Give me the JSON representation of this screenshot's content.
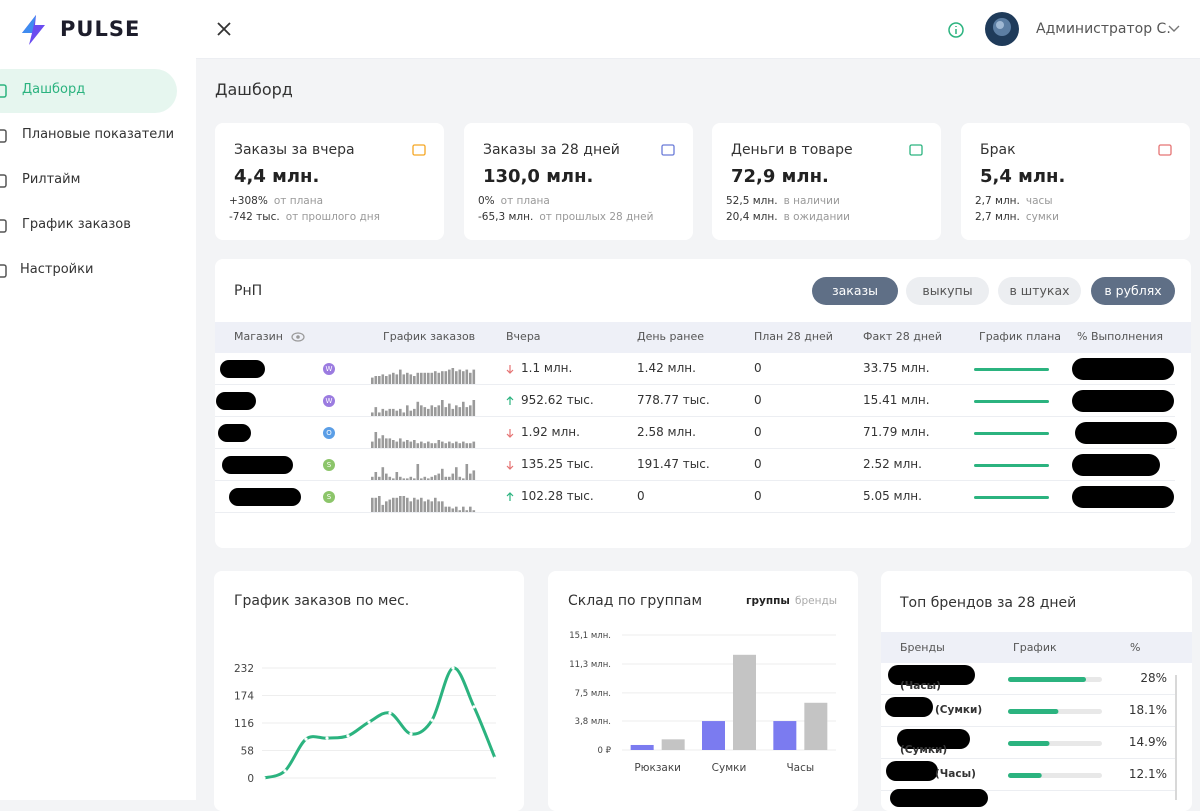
{
  "brand": "PULSE",
  "header": {
    "user": "Администратор С."
  },
  "nav": [
    {
      "label": "Дашборд",
      "active": true
    },
    {
      "label": "Плановые показатели",
      "active": false
    },
    {
      "label": "Рилтайм",
      "active": false
    },
    {
      "label": "График заказов",
      "active": false
    },
    {
      "label": "Настройки",
      "active": false
    }
  ],
  "page_title": "Дашборд",
  "kpis": [
    {
      "title": "Заказы за вчера",
      "value": "4,4 млн.",
      "lines": [
        {
          "value": "+308%",
          "label": "от плана"
        },
        {
          "value": "-742 тыс.",
          "label": "от прошлого дня"
        }
      ]
    },
    {
      "title": "Заказы за 28 дней",
      "value": "130,0 млн.",
      "lines": [
        {
          "value": "0%",
          "label": "от плана"
        },
        {
          "value": "-65,3 млн.",
          "label": "от прошлых 28 дней"
        }
      ]
    },
    {
      "title": "Деньги в товаре",
      "value": "72,9 млн.",
      "lines": [
        {
          "value": "52,5 млн.",
          "label": "в наличии"
        },
        {
          "value": "20,4 млн.",
          "label": "в ожидании"
        }
      ]
    },
    {
      "title": "Брак",
      "value": "5,4 млн.",
      "lines": [
        {
          "value": "2,7 млн.",
          "label": "часы"
        },
        {
          "value": "2,7 млн.",
          "label": "сумки"
        }
      ]
    }
  ],
  "rnp": {
    "title": "РнП",
    "tabs": [
      {
        "label": "заказы",
        "active": true
      },
      {
        "label": "выкупы",
        "active": false
      },
      {
        "label": "в штуках",
        "active": false
      },
      {
        "label": "в рублях",
        "active": true
      }
    ],
    "columns": [
      "Магазин",
      "График заказов",
      "Вчера",
      "День ранее",
      "План 28 дней",
      "Факт 28 дней",
      "График плана",
      "% Выполнения"
    ],
    "rows": [
      {
        "badge": "W",
        "badge_color": "#9b7be0",
        "trend": "down",
        "yesterday": "1.1 млн.",
        "prev": "1.42 млн.",
        "plan": "0",
        "fact": "33.75 млн.",
        "spark": [
          4,
          5,
          5,
          6,
          5,
          6,
          7,
          6,
          9,
          6,
          7,
          6,
          5,
          7,
          7,
          7,
          7,
          7,
          8,
          7,
          8,
          8,
          9,
          10,
          8,
          9,
          8,
          9,
          7,
          9
        ]
      },
      {
        "badge": "W",
        "badge_color": "#9b7be0",
        "trend": "up",
        "yesterday": "952.62 тыс.",
        "prev": "778.77 тыс.",
        "plan": "0",
        "fact": "15.41 млн.",
        "spark": [
          2,
          5,
          2,
          4,
          3,
          4,
          4,
          3,
          4,
          2,
          6,
          3,
          4,
          8,
          6,
          5,
          4,
          6,
          5,
          6,
          9,
          5,
          7,
          4,
          6,
          5,
          8,
          5,
          6,
          9
        ]
      },
      {
        "badge": "O",
        "badge_color": "#5b9ee6",
        "trend": "down",
        "yesterday": "1.92 млн.",
        "prev": "2.58 млн.",
        "plan": "0",
        "fact": "71.79 млн.",
        "spark": [
          4,
          10,
          6,
          8,
          6,
          6,
          5,
          4,
          6,
          4,
          5,
          4,
          5,
          3,
          4,
          3,
          4,
          3,
          3,
          5,
          4,
          3,
          4,
          3,
          4,
          3,
          4,
          3,
          3,
          4
        ]
      },
      {
        "badge": "S",
        "badge_color": "#8cc56a",
        "trend": "down",
        "yesterday": "135.25 тыс.",
        "prev": "191.47 тыс.",
        "plan": "0",
        "fact": "2.52 млн.",
        "spark": [
          2,
          5,
          2,
          8,
          4,
          2,
          1,
          5,
          2,
          1,
          1,
          2,
          1,
          10,
          1,
          2,
          1,
          2,
          3,
          4,
          7,
          2,
          2,
          4,
          8,
          2,
          1,
          10,
          4,
          6
        ]
      },
      {
        "badge": "S",
        "badge_color": "#8cc56a",
        "trend": "up",
        "yesterday": "102.28 тыс.",
        "prev": "0",
        "plan": "0",
        "fact": "5.05 млн.",
        "spark": [
          8,
          8,
          9,
          4,
          6,
          7,
          8,
          8,
          9,
          9,
          8,
          6,
          8,
          7,
          8,
          6,
          7,
          6,
          8,
          6,
          6,
          3,
          3,
          2,
          3,
          1,
          3,
          1,
          3,
          1
        ]
      }
    ]
  },
  "chart_data": [
    {
      "type": "line",
      "title": "График заказов по мес.",
      "categories": [
        null,
        null,
        null,
        null,
        null,
        null,
        null,
        null,
        null,
        null,
        null,
        null
      ],
      "values": [
        0,
        15,
        82,
        84,
        89,
        118,
        137,
        93,
        122,
        232,
        150,
        42
      ],
      "color": "#2bb37f",
      "ylim": [
        0,
        232
      ],
      "yticks": [
        0,
        58,
        116,
        174,
        232
      ],
      "grid": true
    },
    {
      "type": "bar",
      "title": "Склад по группам",
      "tabs": [
        {
          "label": "группы",
          "active": true
        },
        {
          "label": "бренды",
          "active": false
        }
      ],
      "categories": [
        "Рюкзаки",
        "Сумки",
        "Часы"
      ],
      "series": [
        {
          "color": "#7b7bf0",
          "values": [
            0.66,
            3.8,
            3.8
          ]
        },
        {
          "color": "#c4c4c4",
          "values": [
            1.4,
            12.5,
            6.2
          ]
        }
      ],
      "ylim": [
        0,
        15.1
      ],
      "yticks": [
        {
          "value": 0,
          "label": "0 ₽"
        },
        {
          "value": 3.8,
          "label": "3,8 млн."
        },
        {
          "value": 7.5,
          "label": "7,5 млн."
        },
        {
          "value": 11.3,
          "label": "11,3 млн."
        },
        {
          "value": 15.1,
          "label": "15,1 млн."
        }
      ],
      "grid": true
    },
    {
      "type": "table-bars",
      "title": "Топ брендов за 28 дней",
      "columns": [
        "Бренды",
        "График",
        "%"
      ],
      "categories": [
        "(Часы)",
        "(Сумки)",
        "(Сумки)",
        "(Часы)"
      ],
      "values": [
        28,
        18.1,
        14.9,
        12.1
      ],
      "value_labels": [
        "28%",
        "18.1%",
        "14.9%",
        "12.1%"
      ],
      "color": "#2bb37f"
    }
  ]
}
